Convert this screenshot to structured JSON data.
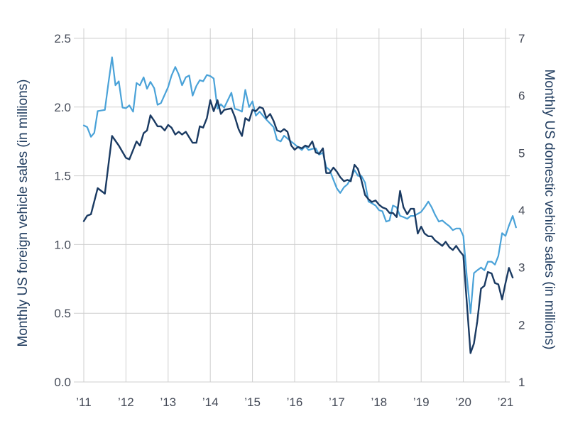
{
  "chart_data": {
    "type": "line",
    "xlabel": "",
    "x_tick_labels": [
      "’11",
      "’12",
      "’13",
      "’14",
      "’15",
      "’16",
      "’17",
      "’18",
      "’19",
      "’20",
      "’21"
    ],
    "x_range": [
      2011,
      2021
    ],
    "left_axis": {
      "label": "Monthly US foreign vehicle sales (in millions)",
      "ylim": [
        0,
        2.5
      ],
      "ticks": [
        "0.0",
        "0.5",
        "1.0",
        "1.5",
        "2.0",
        "2.5"
      ],
      "color": "#1d3f66"
    },
    "right_axis": {
      "label": "Monthly US domestic vehicle sales  (in millions)",
      "ylim": [
        1,
        7
      ],
      "ticks": [
        "1",
        "2",
        "3",
        "4",
        "5",
        "6",
        "7"
      ],
      "color": "#1d3f66"
    },
    "grid": true,
    "series": [
      {
        "axis": "left",
        "color": "#1a3a62",
        "points": [
          [
            2011.0,
            1.17
          ],
          [
            2011.08,
            1.21
          ],
          [
            2011.17,
            1.22
          ],
          [
            2011.33,
            1.41
          ],
          [
            2011.5,
            1.37
          ],
          [
            2011.67,
            1.79
          ],
          [
            2011.83,
            1.72
          ],
          [
            2012.0,
            1.63
          ],
          [
            2012.08,
            1.62
          ],
          [
            2012.25,
            1.75
          ],
          [
            2012.33,
            1.72
          ],
          [
            2012.42,
            1.81
          ],
          [
            2012.5,
            1.83
          ],
          [
            2012.58,
            1.94
          ],
          [
            2012.67,
            1.9
          ],
          [
            2012.75,
            1.86
          ],
          [
            2012.83,
            1.86
          ],
          [
            2012.92,
            1.83
          ],
          [
            2013.0,
            1.87
          ],
          [
            2013.08,
            1.85
          ],
          [
            2013.17,
            1.8
          ],
          [
            2013.25,
            1.82
          ],
          [
            2013.33,
            1.8
          ],
          [
            2013.42,
            1.82
          ],
          [
            2013.5,
            1.78
          ],
          [
            2013.58,
            1.74
          ],
          [
            2013.67,
            1.74
          ],
          [
            2013.75,
            1.86
          ],
          [
            2013.83,
            1.85
          ],
          [
            2013.92,
            1.92
          ],
          [
            2014.0,
            2.05
          ],
          [
            2014.08,
            1.97
          ],
          [
            2014.17,
            2.05
          ],
          [
            2014.25,
            1.95
          ],
          [
            2014.33,
            1.98
          ],
          [
            2014.5,
            1.99
          ],
          [
            2014.58,
            1.93
          ],
          [
            2014.67,
            1.84
          ],
          [
            2014.75,
            1.79
          ],
          [
            2014.83,
            1.92
          ],
          [
            2014.92,
            1.9
          ],
          [
            2015.0,
            1.98
          ],
          [
            2015.08,
            1.97
          ],
          [
            2015.17,
            2.0
          ],
          [
            2015.25,
            1.99
          ],
          [
            2015.33,
            1.92
          ],
          [
            2015.42,
            1.95
          ],
          [
            2015.5,
            1.9
          ],
          [
            2015.58,
            1.83
          ],
          [
            2015.67,
            1.82
          ],
          [
            2015.75,
            1.84
          ],
          [
            2015.83,
            1.82
          ],
          [
            2015.92,
            1.72
          ],
          [
            2016.0,
            1.69
          ],
          [
            2016.08,
            1.71
          ],
          [
            2016.17,
            1.7
          ],
          [
            2016.25,
            1.72
          ],
          [
            2016.33,
            1.71
          ],
          [
            2016.42,
            1.75
          ],
          [
            2016.5,
            1.67
          ],
          [
            2016.58,
            1.66
          ],
          [
            2016.67,
            1.7
          ],
          [
            2016.75,
            1.52
          ],
          [
            2016.83,
            1.52
          ],
          [
            2016.92,
            1.56
          ],
          [
            2017.0,
            1.53
          ],
          [
            2017.08,
            1.49
          ],
          [
            2017.17,
            1.46
          ],
          [
            2017.25,
            1.47
          ],
          [
            2017.33,
            1.46
          ],
          [
            2017.42,
            1.58
          ],
          [
            2017.5,
            1.55
          ],
          [
            2017.58,
            1.47
          ],
          [
            2017.67,
            1.36
          ],
          [
            2017.75,
            1.33
          ],
          [
            2017.83,
            1.31
          ],
          [
            2017.92,
            1.32
          ],
          [
            2018.0,
            1.29
          ],
          [
            2018.08,
            1.27
          ],
          [
            2018.17,
            1.26
          ],
          [
            2018.25,
            1.23
          ],
          [
            2018.33,
            1.23
          ],
          [
            2018.42,
            1.2
          ],
          [
            2018.5,
            1.39
          ],
          [
            2018.58,
            1.27
          ],
          [
            2018.67,
            1.22
          ],
          [
            2018.75,
            1.26
          ],
          [
            2018.83,
            1.26
          ],
          [
            2018.92,
            1.08
          ],
          [
            2019.0,
            1.13
          ],
          [
            2019.08,
            1.08
          ],
          [
            2019.17,
            1.06
          ],
          [
            2019.25,
            1.06
          ],
          [
            2019.33,
            1.03
          ],
          [
            2019.42,
            1.01
          ],
          [
            2019.5,
            0.99
          ],
          [
            2019.58,
            1.02
          ],
          [
            2019.67,
            0.98
          ],
          [
            2019.75,
            0.96
          ],
          [
            2019.83,
            0.99
          ],
          [
            2019.92,
            0.95
          ],
          [
            2020.0,
            0.92
          ],
          [
            2020.17,
            0.21
          ],
          [
            2020.25,
            0.28
          ],
          [
            2020.33,
            0.44
          ],
          [
            2020.42,
            0.68
          ],
          [
            2020.5,
            0.7
          ],
          [
            2020.58,
            0.8
          ],
          [
            2020.67,
            0.79
          ],
          [
            2020.75,
            0.72
          ],
          [
            2020.83,
            0.71
          ],
          [
            2020.92,
            0.6
          ],
          [
            2021.0,
            0.72
          ],
          [
            2021.08,
            0.83
          ],
          [
            2021.17,
            0.76
          ]
        ]
      },
      {
        "axis": "right",
        "color": "#4aa2d8",
        "points": [
          [
            2011.0,
            5.48
          ],
          [
            2011.08,
            5.45
          ],
          [
            2011.17,
            5.28
          ],
          [
            2011.25,
            5.35
          ],
          [
            2011.33,
            5.73
          ],
          [
            2011.5,
            5.75
          ],
          [
            2011.58,
            6.2
          ],
          [
            2011.67,
            6.67
          ],
          [
            2011.75,
            6.18
          ],
          [
            2011.83,
            6.25
          ],
          [
            2011.92,
            5.79
          ],
          [
            2012.0,
            5.78
          ],
          [
            2012.08,
            5.83
          ],
          [
            2012.17,
            5.72
          ],
          [
            2012.25,
            6.22
          ],
          [
            2012.33,
            6.18
          ],
          [
            2012.42,
            6.32
          ],
          [
            2012.5,
            6.12
          ],
          [
            2012.58,
            6.24
          ],
          [
            2012.67,
            6.13
          ],
          [
            2012.75,
            5.84
          ],
          [
            2012.83,
            5.87
          ],
          [
            2013.0,
            6.15
          ],
          [
            2013.08,
            6.35
          ],
          [
            2013.17,
            6.5
          ],
          [
            2013.25,
            6.37
          ],
          [
            2013.33,
            6.18
          ],
          [
            2013.42,
            6.32
          ],
          [
            2013.5,
            6.35
          ],
          [
            2013.58,
            6.0
          ],
          [
            2013.67,
            6.17
          ],
          [
            2013.75,
            6.27
          ],
          [
            2013.83,
            6.25
          ],
          [
            2013.92,
            6.36
          ],
          [
            2014.0,
            6.34
          ],
          [
            2014.08,
            6.3
          ],
          [
            2014.17,
            5.77
          ],
          [
            2014.25,
            5.85
          ],
          [
            2014.33,
            5.79
          ],
          [
            2014.5,
            6.05
          ],
          [
            2014.58,
            5.77
          ],
          [
            2014.67,
            5.75
          ],
          [
            2014.75,
            5.72
          ],
          [
            2014.83,
            6.1
          ],
          [
            2014.92,
            5.8
          ],
          [
            2015.0,
            5.9
          ],
          [
            2015.08,
            5.65
          ],
          [
            2015.17,
            5.72
          ],
          [
            2015.25,
            5.65
          ],
          [
            2015.33,
            5.58
          ],
          [
            2015.5,
            5.45
          ],
          [
            2015.58,
            5.23
          ],
          [
            2015.67,
            5.2
          ],
          [
            2015.75,
            5.3
          ],
          [
            2015.83,
            5.25
          ],
          [
            2016.0,
            5.15
          ],
          [
            2016.08,
            5.1
          ],
          [
            2016.17,
            5.05
          ],
          [
            2016.25,
            5.12
          ],
          [
            2016.33,
            5.05
          ],
          [
            2016.42,
            5.07
          ],
          [
            2016.5,
            5.08
          ],
          [
            2016.58,
            4.97
          ],
          [
            2016.67,
            5.0
          ],
          [
            2016.75,
            4.75
          ],
          [
            2016.83,
            4.7
          ],
          [
            2016.92,
            4.53
          ],
          [
            2017.0,
            4.38
          ],
          [
            2017.08,
            4.3
          ],
          [
            2017.17,
            4.4
          ],
          [
            2017.25,
            4.45
          ],
          [
            2017.33,
            4.55
          ],
          [
            2017.42,
            4.7
          ],
          [
            2017.5,
            4.6
          ],
          [
            2017.58,
            4.6
          ],
          [
            2017.67,
            4.48
          ],
          [
            2017.75,
            4.15
          ],
          [
            2017.83,
            4.12
          ],
          [
            2017.92,
            4.08
          ],
          [
            2018.0,
            4.0
          ],
          [
            2018.08,
            3.98
          ],
          [
            2018.17,
            3.8
          ],
          [
            2018.25,
            3.82
          ],
          [
            2018.33,
            4.08
          ],
          [
            2018.42,
            4.05
          ],
          [
            2018.5,
            3.9
          ],
          [
            2018.58,
            3.88
          ],
          [
            2018.67,
            3.85
          ],
          [
            2018.75,
            3.9
          ],
          [
            2018.83,
            3.9
          ],
          [
            2019.0,
            3.97
          ],
          [
            2019.08,
            4.05
          ],
          [
            2019.17,
            4.15
          ],
          [
            2019.25,
            4.05
          ],
          [
            2019.33,
            3.92
          ],
          [
            2019.42,
            3.8
          ],
          [
            2019.5,
            3.82
          ],
          [
            2019.58,
            3.77
          ],
          [
            2019.67,
            3.72
          ],
          [
            2019.75,
            3.65
          ],
          [
            2019.83,
            3.68
          ],
          [
            2019.92,
            3.68
          ],
          [
            2020.0,
            3.55
          ],
          [
            2020.08,
            2.85
          ],
          [
            2020.17,
            2.2
          ],
          [
            2020.25,
            2.9
          ],
          [
            2020.33,
            2.95
          ],
          [
            2020.42,
            3.0
          ],
          [
            2020.5,
            2.95
          ],
          [
            2020.58,
            3.1
          ],
          [
            2020.67,
            3.1
          ],
          [
            2020.75,
            3.05
          ],
          [
            2020.83,
            3.2
          ],
          [
            2020.92,
            3.6
          ],
          [
            2021.0,
            3.55
          ],
          [
            2021.08,
            3.73
          ],
          [
            2021.17,
            3.9
          ],
          [
            2021.25,
            3.7
          ]
        ]
      }
    ]
  }
}
